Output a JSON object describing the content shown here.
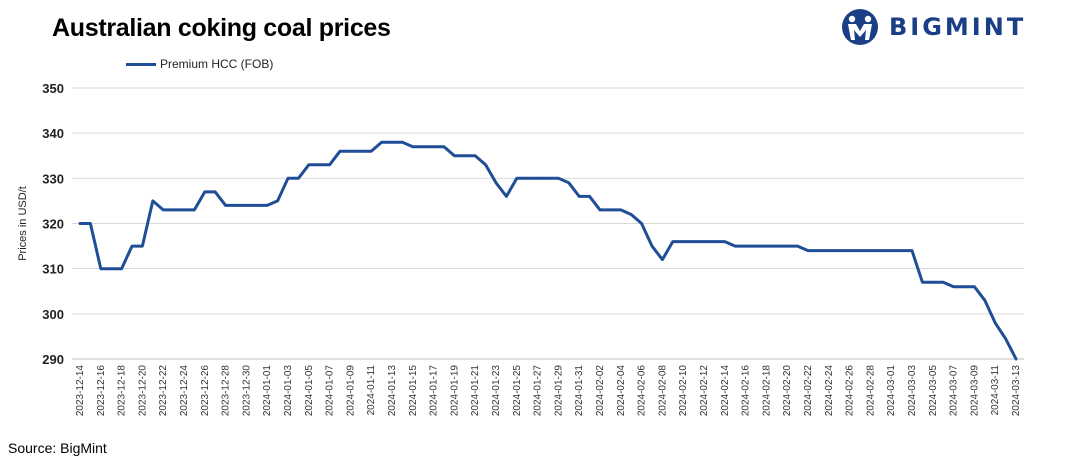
{
  "header": {
    "title": "Australian coking coal prices"
  },
  "logo": {
    "text": "BIGMINT",
    "color": "#1a3f86"
  },
  "footer": {
    "source": "Source: BigMint"
  },
  "chart_data": {
    "type": "line",
    "title": "Australian coking coal prices",
    "xlabel": "",
    "ylabel": "Prices in USD/t",
    "ylim": [
      290,
      350
    ],
    "yticks": [
      290,
      300,
      310,
      320,
      330,
      340,
      350
    ],
    "grid": true,
    "legend_position": "top-left",
    "line_color": "#1f4e96",
    "x": [
      "2023-12-14",
      "2023-12-15",
      "2023-12-16",
      "2023-12-17",
      "2023-12-18",
      "2023-12-19",
      "2023-12-20",
      "2023-12-21",
      "2023-12-22",
      "2023-12-23",
      "2023-12-24",
      "2023-12-25",
      "2023-12-26",
      "2023-12-27",
      "2023-12-28",
      "2023-12-29",
      "2023-12-30",
      "2023-12-31",
      "2024-01-01",
      "2024-01-02",
      "2024-01-03",
      "2024-01-04",
      "2024-01-05",
      "2024-01-06",
      "2024-01-07",
      "2024-01-08",
      "2024-01-09",
      "2024-01-10",
      "2024-01-11",
      "2024-01-12",
      "2024-01-13",
      "2024-01-14",
      "2024-01-15",
      "2024-01-16",
      "2024-01-17",
      "2024-01-18",
      "2024-01-19",
      "2024-01-20",
      "2024-01-21",
      "2024-01-22",
      "2024-01-23",
      "2024-01-24",
      "2024-01-25",
      "2024-01-26",
      "2024-01-27",
      "2024-01-28",
      "2024-01-29",
      "2024-01-30",
      "2024-01-31",
      "2024-02-01",
      "2024-02-02",
      "2024-02-03",
      "2024-02-04",
      "2024-02-05",
      "2024-02-06",
      "2024-02-07",
      "2024-02-08",
      "2024-02-09",
      "2024-02-10",
      "2024-02-11",
      "2024-02-12",
      "2024-02-13",
      "2024-02-14",
      "2024-02-15",
      "2024-02-16",
      "2024-02-17",
      "2024-02-18",
      "2024-02-19",
      "2024-02-20",
      "2024-02-21",
      "2024-02-22",
      "2024-02-23",
      "2024-02-24",
      "2024-02-25",
      "2024-02-26",
      "2024-02-27",
      "2024-02-28",
      "2024-02-29",
      "2024-03-01",
      "2024-03-02",
      "2024-03-03",
      "2024-03-04",
      "2024-03-05",
      "2024-03-06",
      "2024-03-07",
      "2024-03-08",
      "2024-03-09",
      "2024-03-10",
      "2024-03-11",
      "2024-03-12",
      "2024-03-13"
    ],
    "series": [
      {
        "name": "Premium HCC (FOB)",
        "values": [
          320,
          320,
          310,
          310,
          310,
          315,
          315,
          325,
          323,
          323,
          323,
          323,
          327,
          327,
          324,
          324,
          324,
          324,
          324,
          325,
          330,
          330,
          333,
          333,
          333,
          336,
          336,
          336,
          336,
          338,
          338,
          338,
          337,
          337,
          337,
          337,
          335,
          335,
          335,
          333,
          329,
          326,
          330,
          330,
          330,
          330,
          330,
          329,
          326,
          326,
          323,
          323,
          323,
          322,
          320,
          315,
          312,
          316,
          316,
          316,
          316,
          316,
          316,
          315,
          315,
          315,
          315,
          315,
          315,
          315,
          314,
          314,
          314,
          314,
          314,
          314,
          314,
          314,
          314,
          314,
          314,
          307,
          307,
          307,
          306,
          306,
          306,
          303,
          298,
          294.5,
          290
        ]
      }
    ],
    "xtick_labels": [
      "2023-12-14",
      "2023-12-16",
      "2023-12-18",
      "2023-12-20",
      "2023-12-22",
      "2023-12-24",
      "2023-12-26",
      "2023-12-28",
      "2023-12-30",
      "2024-01-01",
      "2024-01-03",
      "2024-01-05",
      "2024-01-07",
      "2024-01-09",
      "2024-01-11",
      "2024-01-13",
      "2024-01-15",
      "2024-01-17",
      "2024-01-19",
      "2024-01-21",
      "2024-01-23",
      "2024-01-25",
      "2024-01-27",
      "2024-01-29",
      "2024-01-31",
      "2024-02-02",
      "2024-02-04",
      "2024-02-06",
      "2024-02-08",
      "2024-02-10",
      "2024-02-12",
      "2024-02-14",
      "2024-02-16",
      "2024-02-18",
      "2024-02-20",
      "2024-02-22",
      "2024-02-24",
      "2024-02-26",
      "2024-02-28",
      "2024-03-01",
      "2024-03-03",
      "2024-03-05",
      "2024-03-07",
      "2024-03-09",
      "2024-03-11",
      "2024-03-13"
    ]
  }
}
